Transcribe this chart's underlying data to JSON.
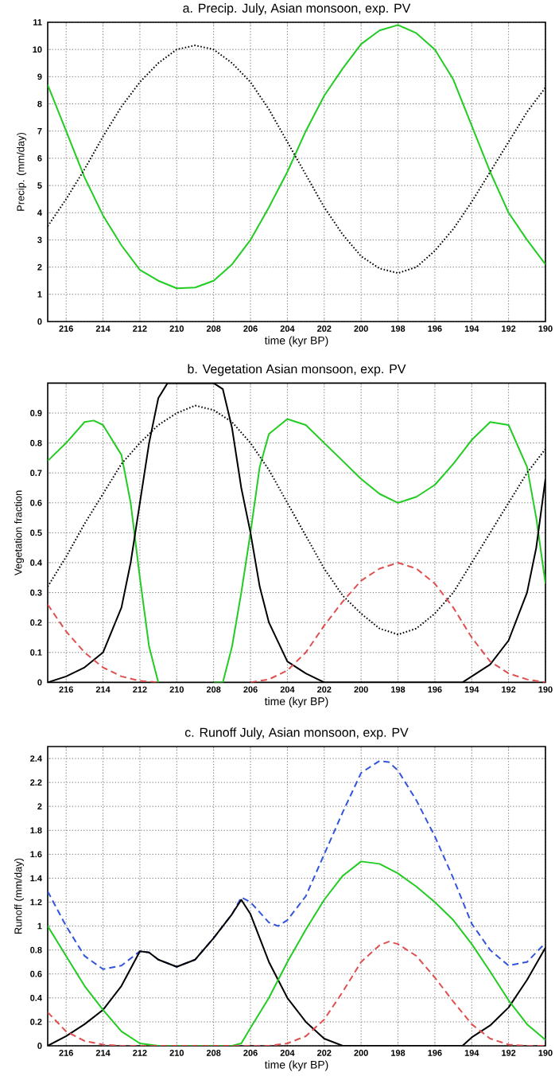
{
  "chart_data": [
    {
      "type": "line",
      "title": "a. Precip. July, Asian monsoon, exp. PV",
      "xlabel": "time (kyr BP)",
      "ylabel": "Precip. (mm/day)",
      "xlim": [
        217,
        190
      ],
      "xticks": [
        216,
        214,
        212,
        210,
        208,
        206,
        204,
        202,
        200,
        198,
        196,
        194,
        192,
        190
      ],
      "ylim": [
        0,
        11
      ],
      "yticks": [
        0,
        1,
        2,
        3,
        4,
        5,
        6,
        7,
        8,
        9,
        10,
        11
      ],
      "grid": true,
      "series": [
        {
          "color": "#22cc22",
          "line_style": "solid",
          "x": [
            217,
            216,
            215,
            214,
            213,
            212,
            211,
            210,
            209,
            208,
            207,
            206,
            205,
            204,
            203,
            202,
            201,
            200,
            199,
            198,
            197,
            196,
            195,
            194,
            193,
            192,
            191,
            190
          ],
          "values": [
            8.7,
            7.0,
            5.3,
            3.9,
            2.8,
            1.9,
            1.5,
            1.22,
            1.25,
            1.5,
            2.1,
            3.0,
            4.2,
            5.5,
            7.0,
            8.3,
            9.3,
            10.2,
            10.7,
            10.9,
            10.6,
            10.0,
            8.9,
            7.2,
            5.5,
            4.0,
            3.0,
            2.1
          ]
        },
        {
          "color": "#000000",
          "line_style": "dotted",
          "x": [
            217,
            216,
            215,
            214,
            213,
            212,
            211,
            210,
            209,
            208,
            207,
            206,
            205,
            204,
            203,
            202,
            201,
            200,
            199,
            198,
            197,
            196,
            195,
            194,
            193,
            192,
            191,
            190
          ],
          "values": [
            3.5,
            4.5,
            5.6,
            6.8,
            7.9,
            8.8,
            9.5,
            10.0,
            10.15,
            10.0,
            9.5,
            8.8,
            7.8,
            6.6,
            5.4,
            4.2,
            3.2,
            2.4,
            1.95,
            1.78,
            2.0,
            2.6,
            3.4,
            4.4,
            5.5,
            6.6,
            7.7,
            8.6
          ]
        }
      ]
    },
    {
      "type": "line",
      "title": "b. Vegetation Asian monsoon, exp. PV",
      "xlabel": "time (kyr BP)",
      "ylabel": "Vegetation fraction",
      "xlim": [
        217,
        190
      ],
      "xticks": [
        216,
        214,
        212,
        210,
        208,
        206,
        204,
        202,
        200,
        198,
        196,
        194,
        192,
        190
      ],
      "ylim": [
        0,
        1
      ],
      "yticks": [
        0,
        0.1,
        0.2,
        0.3,
        0.4,
        0.5,
        0.6,
        0.7,
        0.8,
        0.9
      ],
      "grid": true,
      "series": [
        {
          "color": "#22cc22",
          "line_style": "solid",
          "x": [
            217,
            216,
            215,
            214.5,
            214,
            213,
            212.5,
            212,
            211.5,
            211,
            210,
            209,
            208,
            207.5,
            207,
            206.5,
            206,
            205.5,
            205,
            204,
            203,
            202,
            201,
            200,
            199,
            198,
            197,
            196,
            195,
            194,
            193,
            192,
            191,
            190.5,
            190
          ],
          "values": [
            0.74,
            0.8,
            0.87,
            0.875,
            0.86,
            0.76,
            0.6,
            0.35,
            0.12,
            0,
            null,
            null,
            0,
            0,
            0.12,
            0.3,
            0.5,
            0.72,
            0.83,
            0.88,
            0.86,
            0.8,
            0.74,
            0.68,
            0.63,
            0.6,
            0.62,
            0.66,
            0.73,
            0.81,
            0.87,
            0.86,
            0.72,
            0.55,
            0.33
          ]
        },
        {
          "color": "#000000",
          "line_style": "solid",
          "x": [
            217,
            216,
            215,
            214,
            213,
            212.5,
            212,
            211.5,
            211,
            210.5,
            210,
            209,
            208,
            207.5,
            207,
            206.5,
            206,
            205.5,
            205,
            204,
            203,
            202,
            201,
            200,
            199,
            198,
            197,
            196,
            195,
            194.5,
            194,
            193,
            192,
            191,
            190.5,
            190
          ],
          "values": [
            0,
            0.02,
            0.05,
            0.1,
            0.25,
            0.4,
            0.6,
            0.8,
            0.95,
            1,
            1,
            1,
            1,
            0.98,
            0.85,
            0.65,
            0.5,
            0.32,
            0.2,
            0.07,
            0.03,
            0,
            0,
            0,
            0,
            0,
            0,
            0,
            0,
            0,
            0.02,
            0.06,
            0.14,
            0.3,
            0.45,
            0.68
          ]
        },
        {
          "color": "#e05050",
          "line_style": "dashed",
          "x": [
            217,
            216,
            215,
            214,
            213,
            212,
            211,
            210,
            209,
            208,
            207,
            206,
            205,
            204,
            203,
            202,
            201,
            200,
            199,
            198,
            197,
            196,
            195,
            194,
            193,
            192,
            191,
            190
          ],
          "values": [
            0.26,
            0.17,
            0.1,
            0.05,
            0.02,
            0.005,
            0,
            null,
            null,
            null,
            null,
            0,
            0.01,
            0.04,
            0.1,
            0.19,
            0.27,
            0.34,
            0.38,
            0.4,
            0.38,
            0.33,
            0.25,
            0.15,
            0.07,
            0.03,
            0.01,
            0
          ]
        },
        {
          "color": "#000000",
          "line_style": "dotted",
          "x": [
            217,
            216,
            215,
            214,
            213,
            212,
            211,
            210,
            209,
            208,
            207,
            206,
            205,
            204,
            203,
            202,
            201,
            200,
            199,
            198,
            197,
            196,
            195,
            194,
            193,
            192,
            191,
            190
          ],
          "values": [
            0.32,
            0.42,
            0.53,
            0.63,
            0.73,
            0.8,
            0.86,
            0.9,
            0.925,
            0.91,
            0.87,
            0.8,
            0.71,
            0.6,
            0.49,
            0.38,
            0.29,
            0.23,
            0.18,
            0.16,
            0.18,
            0.23,
            0.3,
            0.4,
            0.5,
            0.6,
            0.7,
            0.78
          ]
        }
      ]
    },
    {
      "type": "line",
      "title": "c. Runoff July, Asian monsoon, exp. PV",
      "xlabel": "time (kyr BP)",
      "ylabel": "Runoff (mm/day)",
      "xlim": [
        217,
        190
      ],
      "xticks": [
        216,
        214,
        212,
        210,
        208,
        206,
        204,
        202,
        200,
        198,
        196,
        194,
        192,
        190
      ],
      "ylim": [
        0,
        2.5
      ],
      "yticks": [
        0,
        0.2,
        0.4,
        0.6,
        0.8,
        1,
        1.2,
        1.4,
        1.6,
        1.8,
        2,
        2.2,
        2.4
      ],
      "grid": true,
      "series": [
        {
          "color": "#3355dd",
          "line_style": "dashed",
          "x": [
            217,
            216,
            215,
            214,
            213,
            212,
            211.5,
            211,
            210,
            209,
            208,
            207,
            206.5,
            206,
            205,
            204.5,
            204,
            203,
            202,
            201,
            200,
            199,
            198.5,
            198,
            197,
            196,
            195,
            194,
            193,
            192,
            191,
            190
          ],
          "values": [
            1.29,
            1.0,
            0.75,
            0.64,
            0.67,
            0.79,
            0.78,
            0.72,
            0.66,
            0.72,
            0.9,
            1.1,
            1.24,
            1.2,
            1.03,
            1.0,
            1.05,
            1.25,
            1.6,
            1.95,
            2.28,
            2.38,
            2.37,
            2.3,
            2.05,
            1.75,
            1.4,
            1.02,
            0.8,
            0.67,
            0.7,
            0.86
          ]
        },
        {
          "color": "#000000",
          "line_style": "solid",
          "x": [
            217,
            216,
            215,
            214,
            213,
            212,
            211.5,
            211,
            210,
            209,
            208,
            207,
            206.5,
            206,
            205,
            204,
            203,
            202,
            201,
            200,
            199,
            198,
            197,
            196,
            195,
            194.5,
            194,
            193,
            192,
            191,
            190
          ],
          "values": [
            0,
            0.08,
            0.18,
            0.3,
            0.5,
            0.79,
            0.78,
            0.72,
            0.66,
            0.72,
            0.9,
            1.1,
            1.22,
            1.1,
            0.7,
            0.4,
            0.2,
            0.06,
            0,
            0,
            0,
            0,
            0,
            0,
            0,
            0,
            0.07,
            0.17,
            0.32,
            0.55,
            0.82
          ]
        },
        {
          "color": "#22cc22",
          "line_style": "solid",
          "x": [
            217,
            216,
            215,
            214,
            213,
            212,
            211,
            210,
            209,
            208,
            207,
            206.5,
            206,
            205,
            204,
            203,
            202,
            201,
            200,
            199,
            198,
            197,
            196,
            195,
            194,
            193,
            192,
            191,
            190
          ],
          "values": [
            1.0,
            0.75,
            0.5,
            0.3,
            0.12,
            0.02,
            0,
            0,
            0,
            0,
            0,
            0.02,
            0.15,
            0.4,
            0.7,
            0.97,
            1.22,
            1.42,
            1.54,
            1.52,
            1.44,
            1.33,
            1.2,
            1.05,
            0.85,
            0.62,
            0.38,
            0.18,
            0.05
          ]
        },
        {
          "color": "#e05050",
          "line_style": "dashed",
          "x": [
            217,
            216,
            215,
            214,
            213,
            212,
            211,
            210,
            209,
            208,
            207,
            206,
            205,
            204,
            203,
            202,
            201,
            200,
            199,
            198.5,
            198,
            197,
            196,
            195,
            194,
            193,
            192,
            191,
            190
          ],
          "values": [
            0.28,
            0.12,
            0.04,
            0.01,
            0,
            0,
            0,
            0,
            0,
            0,
            0,
            0,
            0,
            0.02,
            0.08,
            0.22,
            0.45,
            0.7,
            0.84,
            0.87,
            0.85,
            0.75,
            0.57,
            0.37,
            0.18,
            0.06,
            0.01,
            0,
            0
          ]
        }
      ]
    }
  ]
}
